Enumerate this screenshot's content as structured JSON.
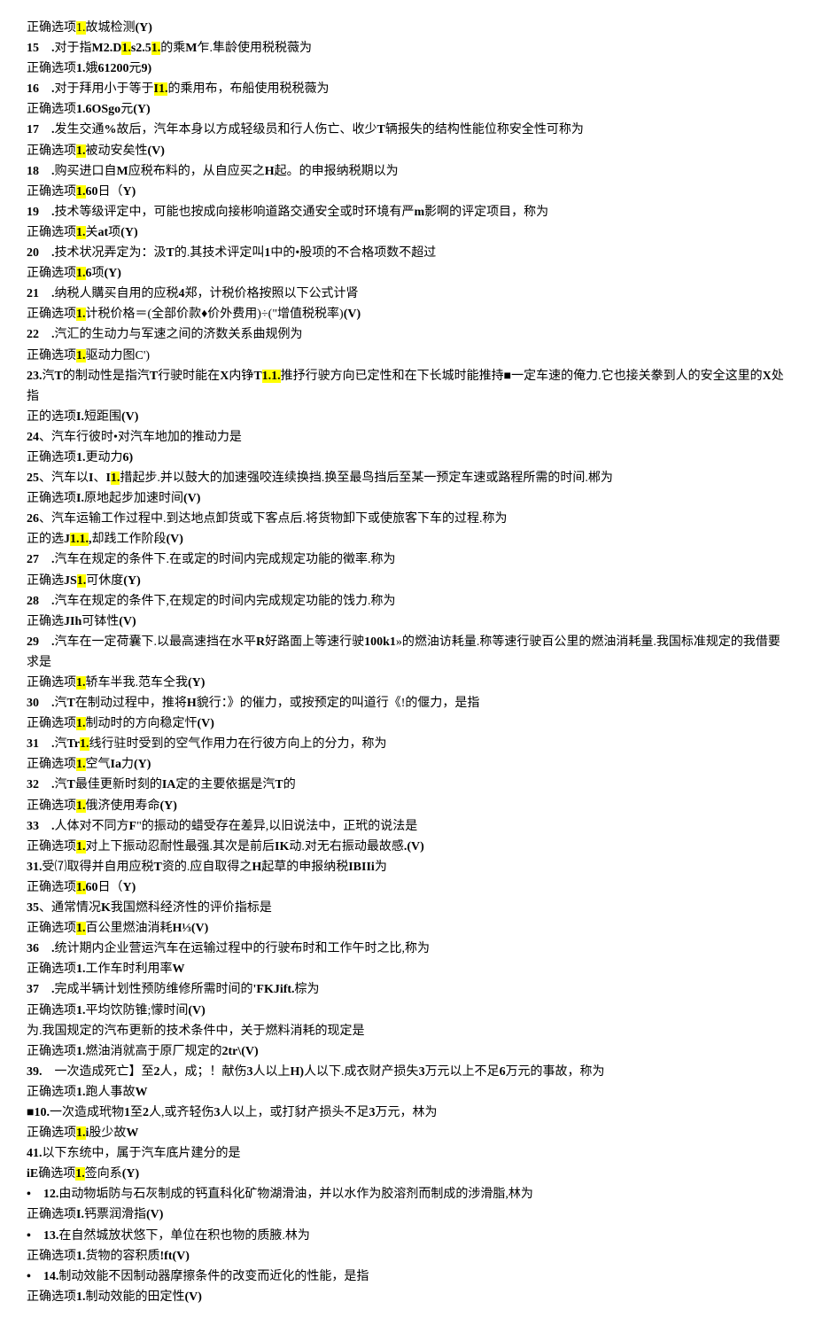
{
  "items": [
    {
      "q": "正确选项{hl:1.}故城检测{b:(Y)}"
    },
    {
      "q": "{b:15}　{b:.}对于指{b:M2.D}{hl:{b:1.}}{b:s2.5}{hl:{b:1.}}的乘{b:M}乍.隼龄使用税税薇为"
    },
    {
      "q": "正确选项{b:1.}娥{b:61200}元{b:9)}"
    },
    {
      "q": "{b:16}　{b:.}对于拜用小于等于{hl:{b:I1.}}的乘用布，布船使用税税薇为"
    },
    {
      "q": "正确选项{b:1.6OSgo}元{b:(Y)}"
    },
    {
      "q": "{b:17}　{b:.}发生交通{b:%}故后，汽年本身以方成轻级员和行人伤亡、收少{b:T}辆报失的结构性能位称安全性可称为"
    },
    {
      "q": "正确选项{hl:{b:1.}}被动安矣性{b:(V)}"
    },
    {
      "q": "{b:18}　{b:.}购买进口自{b:M}应税布料的，从自应买之{b:H}起。的申报纳税期以为"
    },
    {
      "q": "正确选项{hl:{b:1.}}{b:60}日（{b:Y)}"
    },
    {
      "q": "{b:19}　{b:.}技术等级评定中，可能也按成向接彬响道路交通安全或时环境有严{b:m}影啊的评定项目，称为"
    },
    {
      "q": "正确选项{hl:{b:1.}}关{b:at}项{b:(Y)}"
    },
    {
      "q": "{b:20}　{b:.}技术状况弄定为：汲{b:T}的.其技术评定叫{b:1}中的•股项的不合格项数不超过"
    },
    {
      "q": "正确选项{hl:{b:1.}}{b:6}项{b:(Y)}"
    },
    {
      "q": "{b:21}　{b:.}纳税人購买自用的应税{b:4}郑，计税价格按照以下公式计肾"
    },
    {
      "q": "正确选项{hl:{b:1.}}计税价格＝(全部价款♦价外费用)÷(\"增值税税率){b:(V)}"
    },
    {
      "q": "{b:22}　{b:.}汽汇的生动力与军速之间的济数关系曲规例为"
    },
    {
      "q": "正确选项{hl:{b:1.}}驱动力图C')"
    },
    {
      "q": "{b:23.}汽{b:T}的制动性是指汽{b:T}行驶时能在{b:X}内铮{b:T}{hl:{b:1.1.}}推抒行驶方向已定性和在下长城时能推持■一定车速的俺力.它也接关豢到人的安全这里的{b:X}处指"
    },
    {
      "q": "正的选项{b:I.}短距围{b:(V)}"
    },
    {
      "q": "{b:24}、汽车行彼时•对汽车地加的推动力是"
    },
    {
      "q": "正确选项{b:1.}更动力{b:6)}"
    },
    {
      "q": "{b:25}、汽车以{b:I}、{b:I}{hl:{b:1.}}措起步.并以鼓大的加速强咬连续换挡.换至最鸟挡后至某一预定车速或路程所需的时间.郴为"
    },
    {
      "q": "正确选项{b:I.}原地起步加速时间{b:(V)}"
    },
    {
      "q": "{b:26}、汽车运输工作过程中.到达地点卸货或下客点后.将货物卸下或使旅客下车的过程.称为"
    },
    {
      "q": "正的选{b:J}{hl:{b:1.1.}}{b:,}却践工作阶段{b:(V)}"
    },
    {
      "q": "{b:27}　{b:.}汽车在规定的条件下.在或定的时间内完成规定功能的徵率.称为"
    },
    {
      "q": "正确选{b:JS}{hl:{b:1.}}可休度{b:(Y)}"
    },
    {
      "q": "{b:28}　{b:.}汽车在规定的条件下,在规定的时间内完成规定功能的饯力.称为"
    },
    {
      "q": "正确选{b:JIh}可钵性{b:(V)}"
    },
    {
      "q": "{b:29}　{b:.}汽车在一定荷囊下.以最高速挡在水平{b:R}好路面上等速行驶{b:100k1}»的燃油访耗量.称等速行驶百公里的燃油消耗量.我国标准规定的我借要求是"
    },
    {
      "q": "正确选项{hl:{b:1.}}轿车半我.范车仝我{b:(Y)}"
    },
    {
      "q": "{b:30}　{b:.}汽{b:T}在制动过程中，推将{b:H}貌行：》的催力，或按预定的叫道行《!的偃力，是指"
    },
    {
      "q": "正确选项{hl:{b:1.}}制动时的方向稳定忓{b:(V)}"
    },
    {
      "q": "{b:31}　{b:.}汽{b:Tr}{hl:{b:1.}}线行驻时受到的空气作用力在行彼方向上的分力，称为"
    },
    {
      "q": "正确选项{hl:{b:1.}}空气{b:Ia}力{b:(Y)}"
    },
    {
      "q": "{b:32}　{b:.}汽{b:T}最佳更新时刻的{b:IA}定的主要依据是汽{b:T}的"
    },
    {
      "q": "正确选项{hl:{b:1.}}俄济使用寿命{b:(Y)}"
    },
    {
      "q": "{b:33}　{b:.}人体对不同方{b:F}\"的振动的蜡受存在差异,以旧说法中，正玳的说法是"
    },
    {
      "q": "正确选项{hl:{b:1.}}对上下振动忍耐性最强.其次是前后{b:IK}动.对无右振动最故感{b:.(V)}"
    },
    {
      "q": "{b:31.}受⑺取得并自用应税{b:T}资的.应自取得之{b:H}起草的申报纳税{b:IBIIi}为"
    },
    {
      "q": "正确选项{hl:{b:1.}}{b:60}日（{b:Y)}"
    },
    {
      "q": "{b:35}、通常情况{b:K}我国燃科经济性的评价指标是"
    },
    {
      "q": "正确选项{hl:{b:1.}}百公里燃油消耗{b:H⅓(V)}"
    },
    {
      "q": "{b:36}　{b:.}统计期内企业营运汽车在运输过程中的行驶布时和工作午时之比,称为"
    },
    {
      "q": "正确选项{b:1.}工作车时利用率{b:W}"
    },
    {
      "q": "{b:37}　{b:.}完成半辆计划性预防维修所需时间的{b:'FKJift.}棕为"
    },
    {
      "q": "正确选项{b:1.}平均饮防锥;懞时间{b:(V)}"
    },
    {
      "q": "为.我国规定的汽布更新的技术条件中，关于燃料消耗的现定是"
    },
    {
      "q": "正确选项{b:1.}燃油消就高于原厂规定的{b:2tr\\(V)}"
    },
    {
      "q": "{b:39.}　一次造成死亡】至{b:2}人，成；！献伤{b:3}人以上{b:H)}人以下.成衣财产损失{b:3}万元以上不足{b:6}万元的事故，称为"
    },
    {
      "q": "正确选项{b:1.}跑人事故{b:W}"
    },
    {
      "q": "{b:■10.}一次造成玳物{b:1}至{b:2}人,或齐轻伤{b:3}人以上，或打豺产损头不足{b:3}万元，林为"
    },
    {
      "q": "正确选项{hl:{b:1.}}{b:i}股少故{b:W}"
    },
    {
      "q": "{b:41.}以下东统中，属于汽车底片建分的是"
    },
    {
      "q": "{b:iE}确选项{hl:{b:1.}}签向系{b:(Y)}"
    },
    {
      "q": "{b:•}　{b:12.}由动物垢防与石灰制成的钙直科化矿物湖滑油，并以水作为胶溶剂而制成的涉滑脂,林为"
    },
    {
      "q": "正确选项{b:I.}钙票润滑指{b:(V)}"
    },
    {
      "q": "{b:•}　{b:13.}在自然城放状悠下，单位在积也物的质腋.林为"
    },
    {
      "q": "正确选项{b:1.}货物的容积质{b:!ft(V)}"
    },
    {
      "q": "{b:•}　{b:14.}制动效能不因制动器摩擦条件的改变而近化的性能，是指"
    },
    {
      "q": "正确选项{b:1.}制动效能的田定性{b:(V)}"
    }
  ]
}
